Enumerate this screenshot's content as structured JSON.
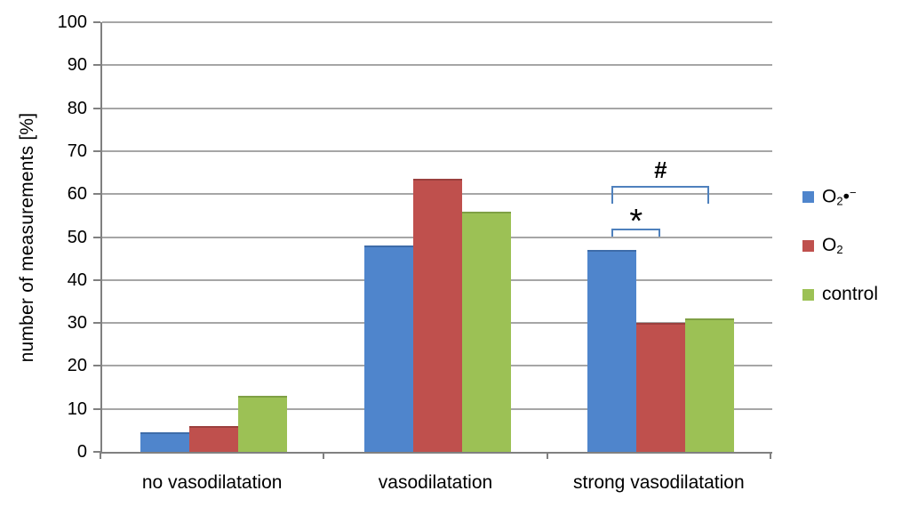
{
  "chart_data": {
    "type": "bar",
    "title": "",
    "xlabel": "",
    "ylabel": "number of measurements [%]",
    "ylim": [
      0,
      100
    ],
    "ytick_step": 10,
    "yticks": [
      0,
      10,
      20,
      30,
      40,
      50,
      60,
      70,
      80,
      90,
      100
    ],
    "grid": true,
    "legend_position": "right",
    "categories": [
      "no vasodilatation",
      "vasodilatation",
      "strong vasodilatation"
    ],
    "series": [
      {
        "name": "O₂•⁻",
        "label_parts": [
          {
            "type": "text",
            "value": "O"
          },
          {
            "type": "sub",
            "value": "2"
          },
          {
            "type": "text",
            "value": "•"
          },
          {
            "type": "sup",
            "value": "−"
          }
        ],
        "color": "#4F85CC",
        "edge_color": "#3E6CA9",
        "values": [
          4.5,
          48,
          47
        ]
      },
      {
        "name": "O₂",
        "label_parts": [
          {
            "type": "text",
            "value": "O"
          },
          {
            "type": "sub",
            "value": "2"
          }
        ],
        "color": "#BF504D",
        "edge_color": "#9B403E",
        "values": [
          6,
          63.5,
          30
        ]
      },
      {
        "name": "control",
        "label_parts": [
          {
            "type": "text",
            "value": "control"
          }
        ],
        "color": "#9CC155",
        "edge_color": "#7FA045",
        "values": [
          13,
          56,
          31
        ]
      }
    ],
    "annotations": [
      {
        "symbol": "#",
        "category_index": 2,
        "from_series": 0,
        "to_series": 2,
        "value": 62,
        "drop": 4.3
      },
      {
        "symbol": "*",
        "category_index": 2,
        "from_series": 0,
        "to_series": 1,
        "value": 52,
        "drop": 2
      }
    ],
    "colors": {
      "axis": "#808080",
      "gridline": "#A6A6A6",
      "bracket": "#4F81BD",
      "text": "#000000",
      "background": "#FFFFFF"
    }
  }
}
